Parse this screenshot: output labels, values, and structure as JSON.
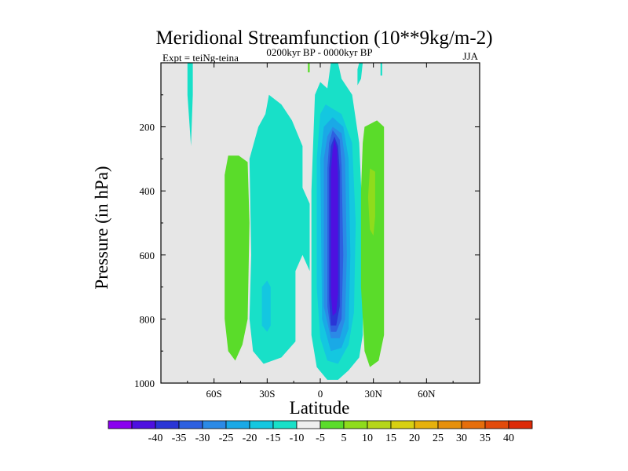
{
  "chart_data": {
    "type": "heatmap",
    "title": "Meridional Streamfunction (10**9kg/m-2)",
    "subtitle_left": "Expt = teiNg-teina",
    "subtitle_center": "0200kyr BP - 0000kyr BP",
    "subtitle_right": "JJA",
    "xlabel": "Latitude",
    "ylabel": "Pressure (in hPa)",
    "xlim": [
      -90,
      90
    ],
    "ylim": [
      1000,
      0
    ],
    "x_ticks": [
      {
        "value": -60,
        "label": "60S"
      },
      {
        "value": -30,
        "label": "30S"
      },
      {
        "value": 0,
        "label": "0"
      },
      {
        "value": 30,
        "label": "30N"
      },
      {
        "value": 60,
        "label": "60N"
      }
    ],
    "y_ticks": [
      {
        "value": 200,
        "label": "200"
      },
      {
        "value": 400,
        "label": "400"
      },
      {
        "value": 600,
        "label": "600"
      },
      {
        "value": 800,
        "label": "800"
      },
      {
        "value": 1000,
        "label": "1000"
      }
    ],
    "background_color": "#e6e6e6",
    "colorbar": {
      "colors": [
        "#8a00ee",
        "#4e10e0",
        "#2a35d6",
        "#2e60e0",
        "#2b8ae6",
        "#1aa9e6",
        "#14c7e0",
        "#18e0c8",
        "#eeeeee",
        "#5adc2a",
        "#8fdc1c",
        "#b6d61a",
        "#d8d012",
        "#e6b10c",
        "#e6900c",
        "#e66e0c",
        "#e24b0c",
        "#dd2a08"
      ],
      "labels": [
        "-40",
        "-35",
        "-30",
        "-25",
        "-20",
        "-15",
        "-10",
        "-5",
        "5",
        "10",
        "15",
        "20",
        "25",
        "30",
        "35",
        "40"
      ]
    },
    "regions": [
      {
        "level": -5,
        "color": "#18e0c8",
        "points": [
          [
            -74,
            0
          ],
          [
            -72,
            0
          ],
          [
            -72,
            100
          ],
          [
            -73,
            260
          ],
          [
            -75,
            100
          ],
          [
            -75,
            0
          ]
        ]
      },
      {
        "level": -5,
        "color": "#18e0c8",
        "points": [
          [
            -29,
            100
          ],
          [
            -22,
            130
          ],
          [
            -16,
            180
          ],
          [
            -10,
            260
          ],
          [
            -10,
            390
          ],
          [
            -6,
            440
          ],
          [
            -6,
            650
          ],
          [
            -10,
            600
          ],
          [
            -14,
            650
          ],
          [
            -14,
            870
          ],
          [
            -22,
            920
          ],
          [
            -32,
            940
          ],
          [
            -38,
            900
          ],
          [
            -40,
            800
          ],
          [
            -39,
            600
          ],
          [
            -40,
            300
          ],
          [
            -35,
            200
          ],
          [
            -31,
            160
          ]
        ]
      },
      {
        "level": -10,
        "color": "#14c7e0",
        "points": [
          [
            -30,
            680
          ],
          [
            -28,
            700
          ],
          [
            -28,
            820
          ],
          [
            -30,
            840
          ],
          [
            -33,
            820
          ],
          [
            -33,
            700
          ]
        ]
      },
      {
        "level": -5,
        "color": "#18e0c8",
        "points": [
          [
            6,
            0
          ],
          [
            10,
            0
          ],
          [
            12,
            50
          ],
          [
            18,
            100
          ],
          [
            22,
            250
          ],
          [
            24,
            500
          ],
          [
            24,
            850
          ],
          [
            22,
            920
          ],
          [
            16,
            960
          ],
          [
            10,
            990
          ],
          [
            4,
            990
          ],
          [
            -2,
            950
          ],
          [
            -5,
            850
          ],
          [
            -5,
            400
          ],
          [
            -3,
            100
          ],
          [
            0,
            60
          ],
          [
            4,
            80
          ]
        ]
      },
      {
        "level": -5,
        "color": "#18e0c8",
        "points": [
          [
            22,
            0
          ],
          [
            24,
            0
          ],
          [
            23,
            50
          ],
          [
            21,
            70
          ],
          [
            21,
            20
          ]
        ]
      },
      {
        "level": -5,
        "color": "#18e0c8",
        "points": [
          [
            34,
            0
          ],
          [
            35,
            0
          ],
          [
            35,
            40
          ],
          [
            34,
            40
          ]
        ]
      },
      {
        "level": -10,
        "color": "#14c7e0",
        "points": [
          [
            6,
            140
          ],
          [
            12,
            160
          ],
          [
            18,
            250
          ],
          [
            20,
            500
          ],
          [
            19,
            780
          ],
          [
            16,
            880
          ],
          [
            10,
            940
          ],
          [
            4,
            930
          ],
          [
            0,
            860
          ],
          [
            -2,
            700
          ],
          [
            -2,
            300
          ],
          [
            0,
            160
          ],
          [
            3,
            130
          ]
        ]
      },
      {
        "level": -15,
        "color": "#1aa9e6",
        "points": [
          [
            7,
            170
          ],
          [
            13,
            200
          ],
          [
            16,
            300
          ],
          [
            17,
            600
          ],
          [
            16,
            830
          ],
          [
            12,
            890
          ],
          [
            6,
            900
          ],
          [
            1,
            800
          ],
          [
            0,
            300
          ],
          [
            2,
            200
          ]
        ]
      },
      {
        "level": -20,
        "color": "#2b8ae6",
        "points": [
          [
            7,
            200
          ],
          [
            12,
            220
          ],
          [
            14,
            300
          ],
          [
            15,
            600
          ],
          [
            14,
            800
          ],
          [
            11,
            860
          ],
          [
            6,
            860
          ],
          [
            2,
            760
          ],
          [
            2,
            300
          ],
          [
            4,
            230
          ]
        ]
      },
      {
        "level": -25,
        "color": "#2e60e0",
        "points": [
          [
            7,
            210
          ],
          [
            11,
            240
          ],
          [
            12,
            320
          ],
          [
            13,
            600
          ],
          [
            12,
            800
          ],
          [
            9,
            840
          ],
          [
            6,
            840
          ],
          [
            4,
            760
          ],
          [
            4,
            330
          ],
          [
            5,
            250
          ]
        ]
      },
      {
        "level": -30,
        "color": "#2a35d6",
        "points": [
          [
            8,
            230
          ],
          [
            10,
            260
          ],
          [
            11,
            340
          ],
          [
            11,
            760
          ],
          [
            9,
            820
          ],
          [
            6,
            820
          ],
          [
            5,
            740
          ],
          [
            5,
            330
          ],
          [
            6,
            260
          ]
        ]
      },
      {
        "level": -35,
        "color": "#4e10e0",
        "points": [
          [
            8,
            240
          ],
          [
            9.5,
            270
          ],
          [
            10,
            360
          ],
          [
            10,
            720
          ],
          [
            9,
            780
          ],
          [
            7,
            790
          ],
          [
            6,
            720
          ],
          [
            6,
            340
          ],
          [
            7,
            270
          ]
        ]
      },
      {
        "level": 5,
        "color": "#5adc2a",
        "points": [
          [
            -52,
            290
          ],
          [
            -46,
            290
          ],
          [
            -41,
            310
          ],
          [
            -40,
            500
          ],
          [
            -41,
            800
          ],
          [
            -44,
            880
          ],
          [
            -48,
            930
          ],
          [
            -52,
            900
          ],
          [
            -54,
            800
          ],
          [
            -54,
            350
          ]
        ]
      },
      {
        "level": 5,
        "color": "#5adc2a",
        "points": [
          [
            -7,
            0
          ],
          [
            -6,
            0
          ],
          [
            -6,
            30
          ],
          [
            -7,
            30
          ]
        ]
      },
      {
        "level": 5,
        "color": "#5adc2a",
        "points": [
          [
            25,
            200
          ],
          [
            32,
            180
          ],
          [
            36,
            200
          ],
          [
            36,
            850
          ],
          [
            33,
            930
          ],
          [
            28,
            950
          ],
          [
            25,
            900
          ],
          [
            23,
            700
          ],
          [
            23,
            400
          ],
          [
            24,
            250
          ]
        ]
      },
      {
        "level": 10,
        "color": "#8fdc1c",
        "points": [
          [
            28,
            330
          ],
          [
            31,
            340
          ],
          [
            31,
            480
          ],
          [
            30,
            540
          ],
          [
            28,
            520
          ],
          [
            27,
            420
          ]
        ]
      }
    ]
  }
}
